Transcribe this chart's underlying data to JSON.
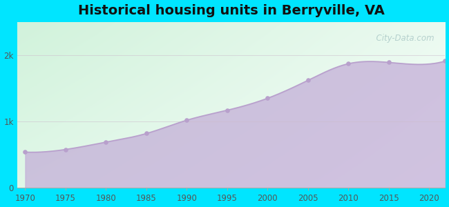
{
  "title": "Historical housing units in Berryville, VA",
  "title_fontsize": 14,
  "title_fontweight": "bold",
  "background_color": "#00e5ff",
  "fill_color": "#c4afd8",
  "fill_alpha": 0.75,
  "line_color": "#b8a0cc",
  "line_width": 1.2,
  "marker_color": "#b8a0cc",
  "marker_size": 14,
  "years": [
    1970,
    1975,
    1980,
    1985,
    1990,
    1995,
    2000,
    2005,
    2010,
    2015,
    2022
  ],
  "values": [
    540,
    580,
    690,
    820,
    1020,
    1170,
    1350,
    1620,
    1870,
    1890,
    1910
  ],
  "ylim": [
    0,
    2500
  ],
  "ytick_vals": [
    0,
    1000,
    2000
  ],
  "ytick_labels": [
    "0",
    "1k",
    "2k"
  ],
  "xtick_vals": [
    1970,
    1975,
    1980,
    1985,
    1990,
    1995,
    2000,
    2005,
    2010,
    2015,
    2020
  ],
  "tick_fontsize": 8.5,
  "tick_color": "#555555",
  "grid_color": "#ccbbcc",
  "grid_alpha": 0.6,
  "watermark": "  City-Data.com",
  "watermark_color": "#99bbbb",
  "watermark_alpha": 0.65,
  "watermark_fontsize": 8.5
}
